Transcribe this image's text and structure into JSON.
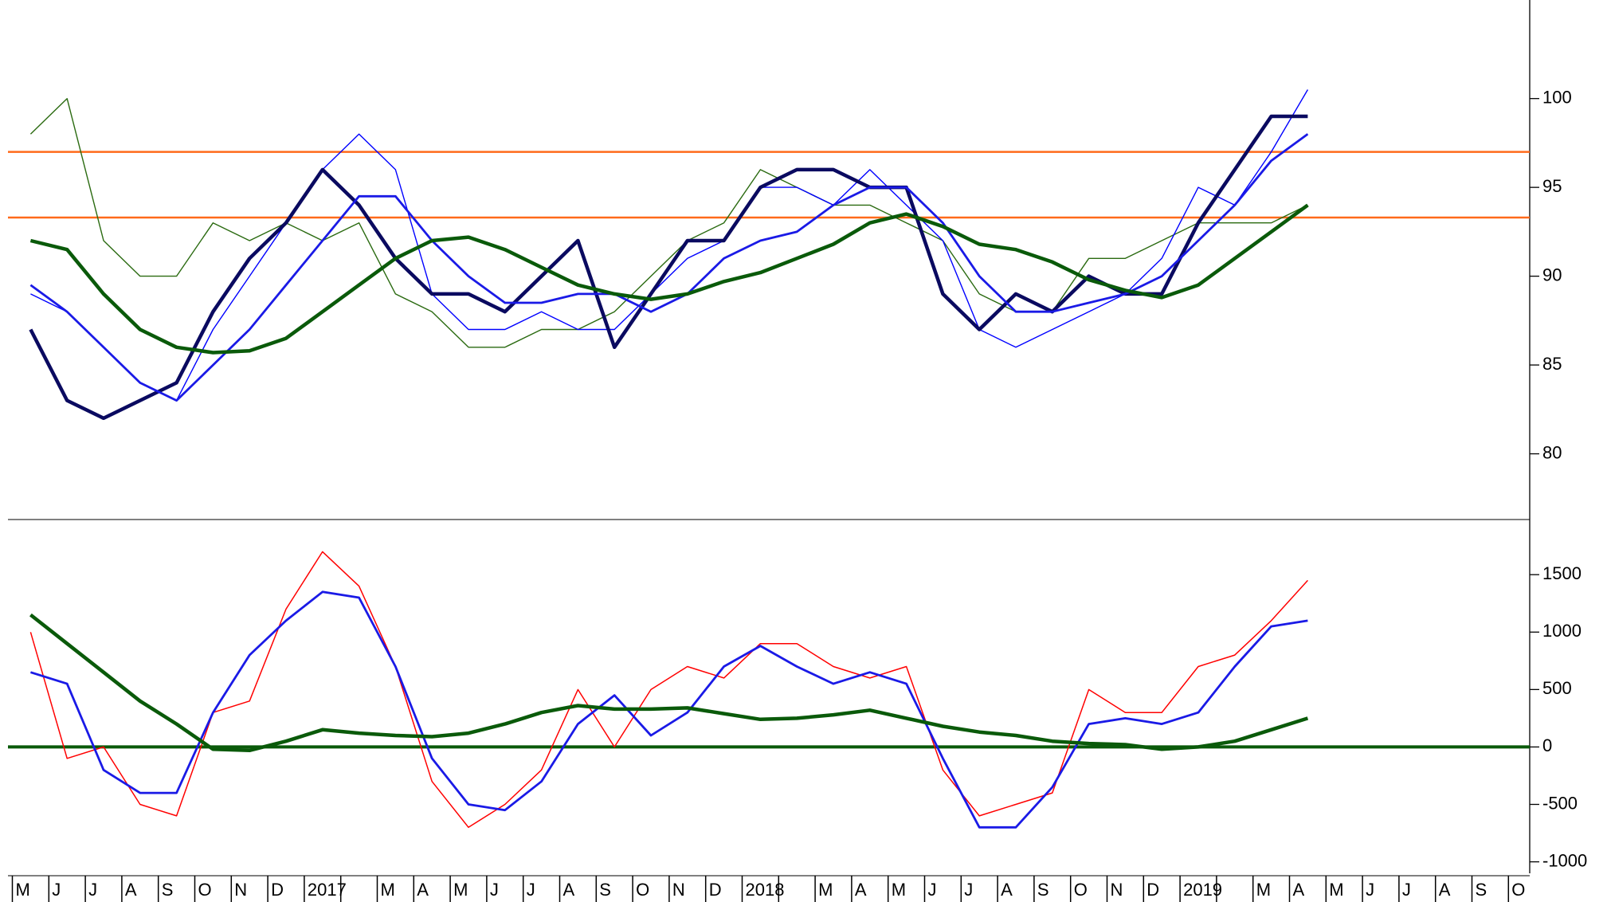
{
  "chart_data": {
    "type": "line",
    "categories": [
      "M",
      "J",
      "J",
      "A",
      "S",
      "O",
      "N",
      "D",
      "2017",
      null,
      "M",
      "A",
      "M",
      "J",
      "J",
      "A",
      "S",
      "O",
      "N",
      "D",
      "2018",
      null,
      "M",
      "A",
      "M",
      "J",
      "J",
      "A",
      "S",
      "O",
      "N",
      "D",
      "2019",
      null,
      "M",
      "A",
      "M",
      "J",
      "J",
      "A",
      "S",
      "O"
    ],
    "panels": [
      {
        "ylim": [
          76.3,
          105.1
        ],
        "yticks": [
          80,
          85,
          90,
          95,
          100
        ],
        "reference_lines": [
          {
            "value": 97,
            "color": "#ff6a1a",
            "width": 2.5
          },
          {
            "value": 93.3,
            "color": "#ff6a1a",
            "width": 2.5
          }
        ],
        "series": [
          {
            "color": "#2a6a10",
            "width": 1.4,
            "values": [
              98,
              100,
              92,
              90,
              90,
              93,
              92,
              93,
              92,
              93,
              89,
              88,
              86,
              86,
              87,
              87,
              88,
              90,
              92,
              93,
              96,
              95,
              94,
              94,
              93,
              92,
              89,
              88,
              88,
              91,
              91,
              92,
              93,
              93,
              93,
              94,
              null,
              null,
              null,
              null,
              null,
              null
            ]
          },
          {
            "color": "#0000ff",
            "width": 1.4,
            "values": [
              89,
              88,
              86,
              84,
              83,
              87,
              90,
              93,
              96,
              98,
              96,
              89,
              87,
              87,
              88,
              87,
              87,
              89,
              91,
              92,
              95,
              95,
              94,
              96,
              94,
              92,
              87,
              86,
              87,
              88,
              89,
              91,
              95,
              94,
              97,
              100.5,
              null,
              null,
              null,
              null,
              null,
              null
            ]
          },
          {
            "color": "#0a0a60",
            "width": 4.5,
            "values": [
              87,
              83,
              82,
              83,
              84,
              88,
              91,
              93,
              96,
              94,
              91,
              89,
              89,
              88,
              90,
              92,
              86,
              89,
              92,
              92,
              95,
              96,
              96,
              95,
              95,
              89,
              87,
              89,
              88,
              90,
              89,
              89,
              93,
              96,
              99,
              99,
              null,
              null,
              null,
              null,
              null,
              null
            ]
          },
          {
            "color": "#1a1ae6",
            "width": 2.8,
            "values": [
              89.5,
              88,
              86,
              84,
              83,
              85,
              87,
              89.5,
              92,
              94.5,
              94.5,
              92,
              90,
              88.5,
              88.5,
              89,
              89,
              88,
              89,
              91,
              92,
              92.5,
              94,
              95,
              95,
              93,
              90,
              88,
              88,
              88.5,
              89,
              90,
              92,
              94,
              96.5,
              98,
              null,
              null,
              null,
              null,
              null,
              null
            ]
          },
          {
            "color": "#0a5a0a",
            "width": 4.5,
            "values": [
              92,
              91.5,
              89,
              87,
              86,
              85.7,
              85.8,
              86.5,
              88,
              89.5,
              91,
              92,
              92.2,
              91.5,
              90.5,
              89.5,
              89,
              88.7,
              89,
              89.7,
              90.2,
              91,
              91.8,
              93,
              93.5,
              92.8,
              91.8,
              91.5,
              90.8,
              89.8,
              89.2,
              88.8,
              89.5,
              91,
              92.5,
              94,
              null,
              null,
              null,
              null,
              null,
              null
            ]
          }
        ]
      },
      {
        "ylim": [
          -1100,
          1980
        ],
        "yticks": [
          1500,
          1000,
          500,
          0,
          -500,
          -1000
        ],
        "reference_lines": [
          {
            "value": 0,
            "color": "#0a5a0a",
            "width": 4
          }
        ],
        "series": [
          {
            "color": "#ff0000",
            "width": 1.5,
            "values": [
              1000,
              -100,
              0,
              -500,
              -600,
              300,
              400,
              1200,
              1700,
              1400,
              700,
              -300,
              -700,
              -500,
              -200,
              500,
              0,
              500,
              700,
              600,
              900,
              900,
              700,
              600,
              700,
              -200,
              -600,
              -500,
              -400,
              500,
              300,
              300,
              700,
              800,
              1100,
              1450,
              null,
              null,
              null,
              null,
              null,
              null
            ]
          },
          {
            "color": "#1a1ae6",
            "width": 2.8,
            "values": [
              650,
              550,
              -200,
              -400,
              -400,
              300,
              800,
              1100,
              1350,
              1300,
              700,
              -100,
              -500,
              -550,
              -300,
              200,
              450,
              100,
              300,
              700,
              880,
              700,
              550,
              650,
              550,
              -100,
              -700,
              -700,
              -350,
              200,
              250,
              200,
              300,
              700,
              1050,
              1100,
              null,
              null,
              null,
              null,
              null,
              null
            ]
          },
          {
            "color": "#0a5a0a",
            "width": 4.5,
            "values": [
              1150,
              900,
              650,
              400,
              200,
              -20,
              -30,
              50,
              150,
              120,
              100,
              90,
              120,
              200,
              300,
              360,
              330,
              330,
              340,
              290,
              240,
              250,
              280,
              320,
              250,
              180,
              130,
              100,
              50,
              30,
              20,
              -20,
              0,
              50,
              150,
              250,
              null,
              null,
              null,
              null,
              null,
              null
            ]
          }
        ]
      }
    ]
  }
}
